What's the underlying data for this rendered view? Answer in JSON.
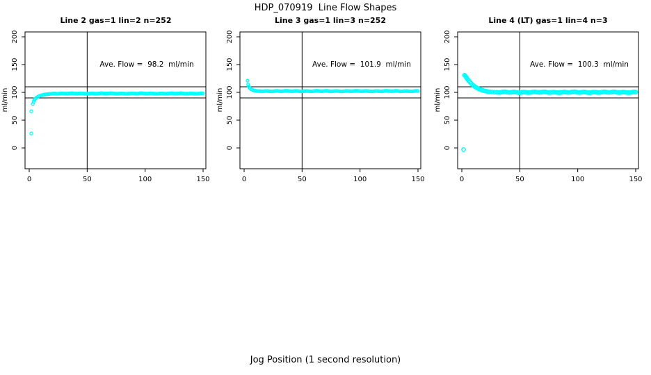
{
  "title": "HDP_070919  Line Flow Shapes",
  "x_axis_label": "Jog Position (1 second resolution)",
  "colors": {
    "points": "#00ffff",
    "axis": "#000000",
    "text": "#000000",
    "background": "#ffffff"
  },
  "chart_data": [
    {
      "type": "scatter",
      "title": "Line 2 gas=1 lin=2 n=252",
      "annotation": "Ave. Flow =  98.2  ml/min",
      "ave_flow": 98.2,
      "ylabel": "ml/min",
      "xlim": [
        0,
        150
      ],
      "ylim": [
        -35,
        210
      ],
      "xticks": [
        0,
        50,
        100,
        150
      ],
      "yticks": [
        0,
        50,
        100,
        150,
        200
      ],
      "hlines": [
        110,
        90
      ],
      "vlines": [
        50
      ],
      "marker_radius": 2.0,
      "head_points": [
        [
          1.8,
          26
        ],
        [
          1.8,
          66
        ],
        [
          3.2,
          79
        ],
        [
          3.8,
          83
        ],
        [
          4.4,
          86
        ],
        [
          5,
          88
        ],
        [
          6,
          90
        ],
        [
          7,
          91.5
        ],
        [
          8,
          92.7
        ],
        [
          9,
          93.7
        ],
        [
          10,
          94.5
        ],
        [
          11,
          95.1
        ],
        [
          12,
          95.6
        ],
        [
          13,
          96
        ],
        [
          14,
          96.4
        ],
        [
          15,
          96.7
        ],
        [
          16,
          96.9
        ],
        [
          17,
          97.1
        ],
        [
          18,
          97.3
        ],
        [
          19,
          97.5
        ],
        [
          20,
          97.7
        ]
      ],
      "plateau": {
        "x_start": 21,
        "x_end": 150,
        "step": 1,
        "value": 98,
        "wobble": 0.55
      }
    },
    {
      "type": "scatter",
      "title": "Line 3 gas=1 lin=3 n=252",
      "annotation": "Ave. Flow =  101.9  ml/min",
      "ave_flow": 101.9,
      "ylabel": "ml/min",
      "xlim": [
        0,
        150
      ],
      "ylim": [
        -35,
        210
      ],
      "xticks": [
        0,
        50,
        100,
        150
      ],
      "yticks": [
        0,
        50,
        100,
        150,
        200
      ],
      "hlines": [
        110,
        90
      ],
      "vlines": [
        50
      ],
      "marker_radius": 2.0,
      "head_points": [
        [
          3,
          121
        ],
        [
          3.5,
          114
        ],
        [
          4,
          111
        ],
        [
          4.5,
          109
        ],
        [
          5,
          107.5
        ],
        [
          6,
          105.8
        ],
        [
          7,
          104.6
        ],
        [
          8,
          103.7
        ],
        [
          9,
          103.1
        ],
        [
          10,
          102.7
        ],
        [
          11,
          102.5
        ],
        [
          12,
          102.4
        ],
        [
          13,
          102.3
        ],
        [
          14,
          102.3
        ]
      ],
      "plateau": {
        "x_start": 15,
        "x_end": 150,
        "step": 1,
        "value": 102.3,
        "wobble": 0.5
      }
    },
    {
      "type": "scatter",
      "title": "Line 4 (LT) gas=1 lin=4 n=3",
      "annotation": "Ave. Flow =  100.3  ml/min",
      "ave_flow": 100.3,
      "ylabel": "ml/min",
      "xlim": [
        0,
        150
      ],
      "ylim": [
        -35,
        210
      ],
      "xticks": [
        0,
        50,
        100,
        150
      ],
      "yticks": [
        0,
        50,
        100,
        150,
        200
      ],
      "hlines": [
        110,
        90
      ],
      "vlines": [
        50
      ],
      "marker_radius": 2.6,
      "head_points": [
        [
          1.5,
          -3
        ],
        [
          2.4,
          131
        ],
        [
          3,
          129.5
        ],
        [
          3.5,
          128
        ],
        [
          4,
          126.5
        ],
        [
          4.5,
          125
        ],
        [
          5,
          123.5
        ],
        [
          6,
          121
        ],
        [
          7,
          118.5
        ],
        [
          8,
          116.2
        ],
        [
          9,
          114.2
        ],
        [
          10,
          112.4
        ],
        [
          11,
          110.8
        ],
        [
          12,
          109.4
        ],
        [
          13,
          108.1
        ],
        [
          14,
          107
        ],
        [
          15,
          106
        ],
        [
          16,
          105.1
        ],
        [
          17,
          104.3
        ],
        [
          18,
          103.6
        ],
        [
          19,
          103
        ],
        [
          20,
          102.5
        ],
        [
          21,
          102
        ],
        [
          22,
          101.6
        ],
        [
          23,
          101.3
        ],
        [
          24,
          101
        ],
        [
          26,
          100.6
        ],
        [
          28,
          100.3
        ]
      ],
      "plateau": {
        "x_start": 30,
        "x_end": 150,
        "step": 1,
        "value": 100.2,
        "wobble": 0.9
      }
    }
  ]
}
